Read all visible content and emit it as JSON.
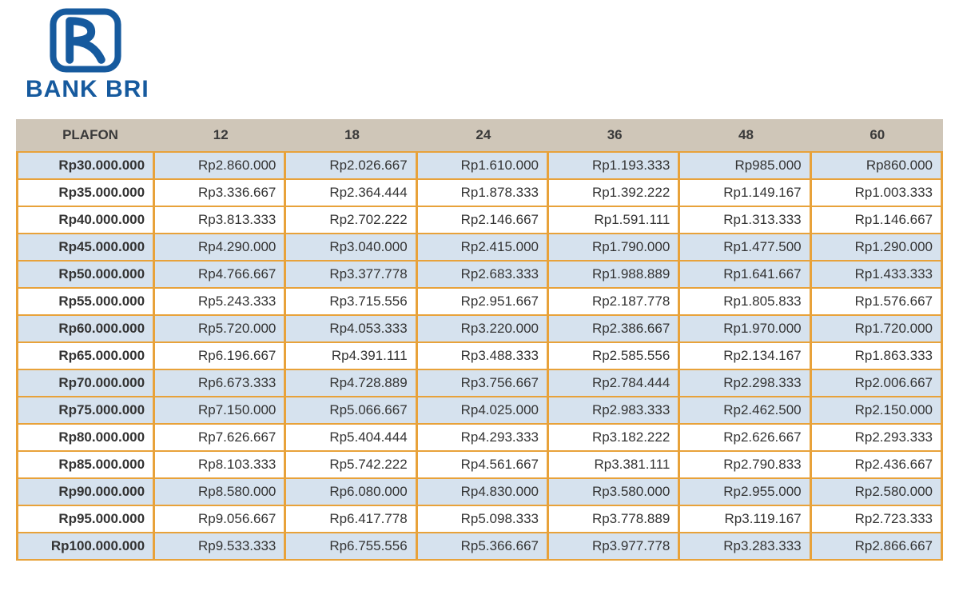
{
  "brand": {
    "name": "BANK BRI",
    "logo_color": "#165a9e"
  },
  "table": {
    "type": "table",
    "header_bg_color": "#cfc6b8",
    "header_text_color": "#3a3a3a",
    "border_color": "#e8a23a",
    "shaded_row_color": "#d6e2ee",
    "text_color": "#333333",
    "font_size": 17,
    "columns": [
      "PLAFON",
      "12",
      "18",
      "24",
      "36",
      "48",
      "60"
    ],
    "rows": [
      {
        "shaded": true,
        "cells": [
          "Rp30.000.000",
          "Rp2.860.000",
          "Rp2.026.667",
          "Rp1.610.000",
          "Rp1.193.333",
          "Rp985.000",
          "Rp860.000"
        ]
      },
      {
        "shaded": false,
        "cells": [
          "Rp35.000.000",
          "Rp3.336.667",
          "Rp2.364.444",
          "Rp1.878.333",
          "Rp1.392.222",
          "Rp1.149.167",
          "Rp1.003.333"
        ]
      },
      {
        "shaded": false,
        "cells": [
          "Rp40.000.000",
          "Rp3.813.333",
          "Rp2.702.222",
          "Rp2.146.667",
          "Rp1.591.111",
          "Rp1.313.333",
          "Rp1.146.667"
        ]
      },
      {
        "shaded": true,
        "cells": [
          "Rp45.000.000",
          "Rp4.290.000",
          "Rp3.040.000",
          "Rp2.415.000",
          "Rp1.790.000",
          "Rp1.477.500",
          "Rp1.290.000"
        ]
      },
      {
        "shaded": true,
        "cells": [
          "Rp50.000.000",
          "Rp4.766.667",
          "Rp3.377.778",
          "Rp2.683.333",
          "Rp1.988.889",
          "Rp1.641.667",
          "Rp1.433.333"
        ]
      },
      {
        "shaded": false,
        "cells": [
          "Rp55.000.000",
          "Rp5.243.333",
          "Rp3.715.556",
          "Rp2.951.667",
          "Rp2.187.778",
          "Rp1.805.833",
          "Rp1.576.667"
        ]
      },
      {
        "shaded": true,
        "cells": [
          "Rp60.000.000",
          "Rp5.720.000",
          "Rp4.053.333",
          "Rp3.220.000",
          "Rp2.386.667",
          "Rp1.970.000",
          "Rp1.720.000"
        ]
      },
      {
        "shaded": false,
        "cells": [
          "Rp65.000.000",
          "Rp6.196.667",
          "Rp4.391.111",
          "Rp3.488.333",
          "Rp2.585.556",
          "Rp2.134.167",
          "Rp1.863.333"
        ]
      },
      {
        "shaded": true,
        "cells": [
          "Rp70.000.000",
          "Rp6.673.333",
          "Rp4.728.889",
          "Rp3.756.667",
          "Rp2.784.444",
          "Rp2.298.333",
          "Rp2.006.667"
        ]
      },
      {
        "shaded": true,
        "cells": [
          "Rp75.000.000",
          "Rp7.150.000",
          "Rp5.066.667",
          "Rp4.025.000",
          "Rp2.983.333",
          "Rp2.462.500",
          "Rp2.150.000"
        ]
      },
      {
        "shaded": false,
        "cells": [
          "Rp80.000.000",
          "Rp7.626.667",
          "Rp5.404.444",
          "Rp4.293.333",
          "Rp3.182.222",
          "Rp2.626.667",
          "Rp2.293.333"
        ]
      },
      {
        "shaded": false,
        "cells": [
          "Rp85.000.000",
          "Rp8.103.333",
          "Rp5.742.222",
          "Rp4.561.667",
          "Rp3.381.111",
          "Rp2.790.833",
          "Rp2.436.667"
        ]
      },
      {
        "shaded": true,
        "cells": [
          "Rp90.000.000",
          "Rp8.580.000",
          "Rp6.080.000",
          "Rp4.830.000",
          "Rp3.580.000",
          "Rp2.955.000",
          "Rp2.580.000"
        ]
      },
      {
        "shaded": false,
        "cells": [
          "Rp95.000.000",
          "Rp9.056.667",
          "Rp6.417.778",
          "Rp5.098.333",
          "Rp3.778.889",
          "Rp3.119.167",
          "Rp2.723.333"
        ]
      },
      {
        "shaded": true,
        "cells": [
          "Rp100.000.000",
          "Rp9.533.333",
          "Rp6.755.556",
          "Rp5.366.667",
          "Rp3.977.778",
          "Rp3.283.333",
          "Rp2.866.667"
        ]
      }
    ]
  }
}
